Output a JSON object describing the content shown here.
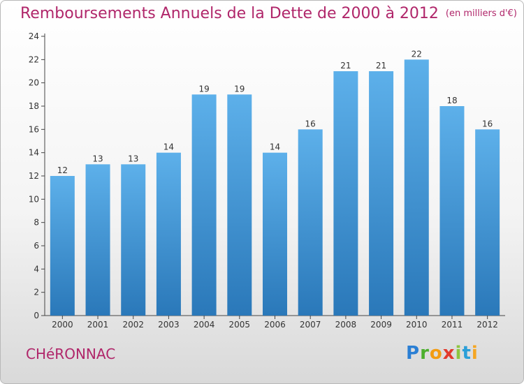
{
  "header": {
    "title": "Remboursements Annuels de la Dette de 2000 à 2012",
    "unit": "(en milliers d'€)"
  },
  "footer": {
    "town": "CHéRONNAC",
    "logo": "Proxiti"
  },
  "colors": {
    "title": "#b0266a",
    "bar_top": "#5db0ea",
    "bar_bottom": "#2a78b9"
  },
  "chart_data": {
    "type": "bar",
    "title": "Remboursements Annuels de la Dette de 2000 à 2012",
    "subtitle": "(en milliers d'€)",
    "xlabel": "",
    "ylabel": "",
    "categories": [
      "2000",
      "2001",
      "2002",
      "2003",
      "2004",
      "2005",
      "2006",
      "2007",
      "2008",
      "2009",
      "2010",
      "2011",
      "2012"
    ],
    "values": [
      12,
      13,
      13,
      14,
      19,
      19,
      14,
      16,
      21,
      21,
      22,
      18,
      16
    ],
    "ylim": [
      0,
      24
    ],
    "yticks": [
      0,
      2,
      4,
      6,
      8,
      10,
      12,
      14,
      16,
      18,
      20,
      22,
      24
    ],
    "grid": false,
    "data_labels": true
  }
}
